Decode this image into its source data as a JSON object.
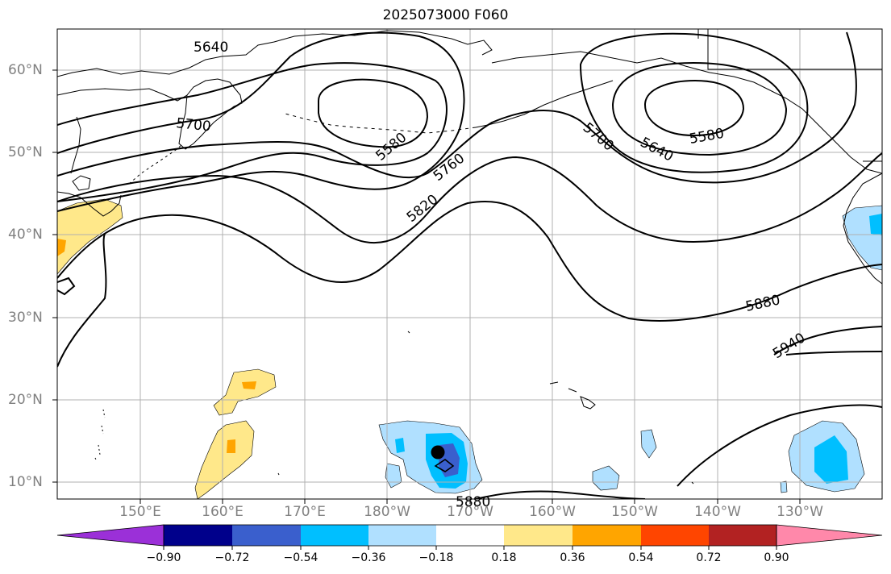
{
  "title": "2025073000 F060",
  "lat_labels": [
    "60°N",
    "50°N",
    "40°N",
    "30°N",
    "20°N",
    "10°N"
  ],
  "lon_labels": [
    "150°E",
    "160°E",
    "170°E",
    "180°W",
    "170°W",
    "160°W",
    "150°W",
    "140°W",
    "130°W"
  ],
  "contour_labels": [
    "5640",
    "5700",
    "5580",
    "5760",
    "5820",
    "5700",
    "5640",
    "5580",
    "5880",
    "5940",
    "5880"
  ],
  "colorbar": {
    "ticks": [
      "−0.90",
      "−0.72",
      "−0.54",
      "−0.36",
      "−0.18",
      "0.18",
      "0.36",
      "0.54",
      "0.72",
      "0.90"
    ],
    "colors": [
      "#9b30d8",
      "#00008b",
      "#3a5fcd",
      "#00bfff",
      "#b0e0ff",
      "#ffffff",
      "#ffe88a",
      "#ffa500",
      "#ff4500",
      "#b22222",
      "#ff88aa"
    ]
  },
  "colors": {
    "land_outline": "#000000",
    "grid": "#b0b0b0",
    "contour": "#000000",
    "tick_label": "#808080"
  }
}
